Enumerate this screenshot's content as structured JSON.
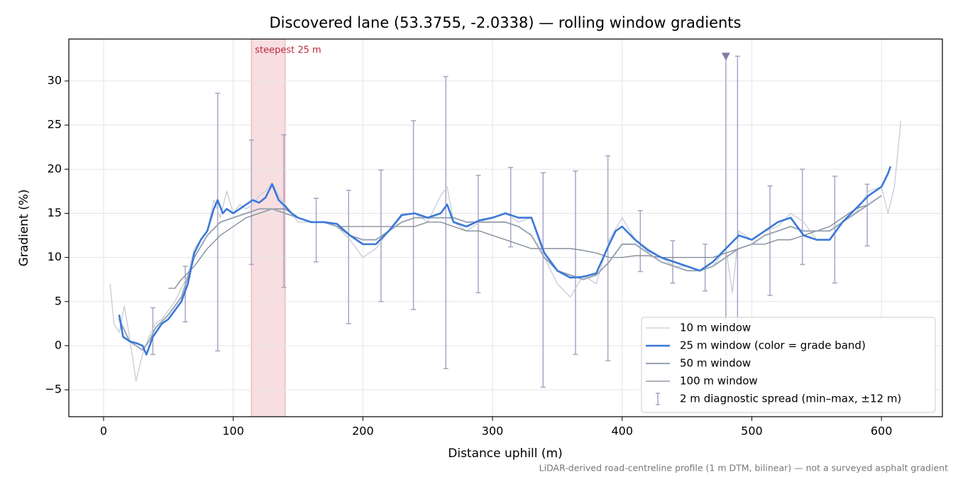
{
  "chart_data": {
    "type": "line",
    "title": "Discovered lane (53.3755, -2.0338) — rolling window gradients",
    "x_label": "Distance uphill (m)",
    "y_label": "Gradient (%)",
    "footnote": "LiDAR-derived road-centreline profile (1 m DTM, bilinear) — not a surveyed asphalt gradient",
    "xlim": [
      -26.8,
      647
    ],
    "ylim": [
      -8.05,
      34.75
    ],
    "xticks": [
      0,
      100,
      200,
      300,
      400,
      500,
      600
    ],
    "yticks": [
      {
        "value": -5,
        "label": "−5"
      },
      0,
      5,
      10,
      15,
      20,
      25,
      30
    ],
    "grid": true,
    "legend": "lower right",
    "span": {
      "x0": 114,
      "x1": 140,
      "color": "#e8a0a8",
      "label": "steepest 25 m"
    },
    "marker": {
      "x": 480,
      "y": 32.8,
      "color": "#8878a8"
    },
    "series": [
      {
        "name": "10 m window",
        "color": "#c5ccd6",
        "width": 1.3,
        "x": [
          5,
          8,
          12,
          16,
          20,
          25,
          30,
          35,
          40,
          45,
          50,
          55,
          60,
          65,
          70,
          75,
          80,
          85,
          90,
          95,
          100,
          105,
          110,
          115,
          120,
          125,
          130,
          135,
          140,
          145,
          150,
          160,
          170,
          180,
          190,
          200,
          210,
          220,
          230,
          240,
          250,
          260,
          265,
          270,
          280,
          290,
          300,
          310,
          320,
          330,
          340,
          350,
          360,
          370,
          380,
          390,
          400,
          410,
          420,
          430,
          440,
          450,
          460,
          470,
          480,
          485,
          490,
          500,
          510,
          520,
          530,
          540,
          550,
          560,
          570,
          580,
          590,
          600,
          605,
          610,
          615
        ],
        "values": [
          7,
          2.5,
          1.5,
          4.5,
          1,
          -4,
          -1,
          1,
          2.5,
          3,
          4,
          5,
          6.5,
          8,
          11,
          12,
          13,
          16.5,
          14.5,
          17.5,
          15,
          16,
          15.5,
          16,
          17,
          17.5,
          18.5,
          17,
          16,
          15,
          14,
          14,
          14,
          13.5,
          12,
          10,
          11,
          13,
          15,
          15,
          14,
          17,
          18,
          14,
          13,
          14,
          14.5,
          15,
          14,
          14.5,
          10,
          7,
          5.5,
          8,
          7,
          12,
          14.5,
          12,
          11,
          10,
          9,
          9,
          8.5,
          9,
          11,
          6,
          13,
          12,
          13,
          13.5,
          15,
          14,
          12,
          12,
          14,
          15,
          17.5,
          18,
          15,
          18,
          25.5
        ]
      },
      {
        "name": "25 m window (color = grade band)",
        "color": "#3a78d8",
        "width": 2.6,
        "x": [
          12,
          15,
          20,
          25,
          30,
          33,
          38,
          45,
          50,
          55,
          60,
          65,
          70,
          75,
          80,
          85,
          88,
          92,
          95,
          100,
          105,
          110,
          115,
          120,
          125,
          130,
          135,
          140,
          145,
          150,
          160,
          170,
          180,
          190,
          200,
          210,
          220,
          230,
          240,
          250,
          260,
          265,
          270,
          280,
          290,
          300,
          310,
          320,
          330,
          340,
          350,
          360,
          370,
          380,
          390,
          395,
          400,
          410,
          420,
          430,
          440,
          450,
          460,
          465,
          470,
          480,
          490,
          500,
          510,
          520,
          530,
          540,
          550,
          560,
          570,
          580,
          590,
          600,
          605,
          607
        ],
        "values": [
          3.5,
          1,
          0.5,
          0.3,
          0,
          -1,
          1,
          2.5,
          3,
          4,
          5,
          7,
          10.5,
          12,
          13,
          15.5,
          16.5,
          15,
          15.5,
          15,
          15.5,
          16,
          16.5,
          16.2,
          16.8,
          18.3,
          16.5,
          15.8,
          15,
          14.5,
          14,
          14,
          13.8,
          12.5,
          11.5,
          11.5,
          13,
          14.8,
          15,
          14.5,
          15,
          16,
          14,
          13.5,
          14.2,
          14.5,
          15,
          14.5,
          14.5,
          10.5,
          8.5,
          7.7,
          7.8,
          8.2,
          11.5,
          13,
          13.5,
          12,
          10.8,
          10,
          9.5,
          9,
          8.5,
          9,
          9.5,
          11,
          12.5,
          12,
          13,
          14,
          14.5,
          12.5,
          12,
          12,
          14,
          15.5,
          17,
          18,
          19.5,
          20.3
        ]
      },
      {
        "name": "50 m window",
        "color": "#9aa5b4",
        "width": 2,
        "x": [
          12,
          20,
          30,
          35,
          40,
          50,
          60,
          70,
          80,
          90,
          100,
          110,
          120,
          130,
          140,
          150,
          160,
          170,
          180,
          190,
          200,
          210,
          220,
          230,
          240,
          250,
          260,
          270,
          280,
          290,
          300,
          310,
          320,
          330,
          340,
          350,
          360,
          370,
          380,
          390,
          400,
          410,
          420,
          430,
          440,
          450,
          460,
          470,
          480,
          490,
          500,
          510,
          520,
          530,
          540,
          550,
          560,
          570,
          580,
          590,
          600
        ],
        "values": [
          3,
          0.5,
          -0.5,
          0.5,
          2,
          3.5,
          5.5,
          10,
          12.5,
          14,
          14.5,
          15,
          15.5,
          15.5,
          15,
          14.5,
          14,
          14,
          13.5,
          12.5,
          12,
          12,
          13,
          14,
          14.5,
          14.5,
          14.5,
          14.5,
          14,
          14,
          14,
          14,
          13.5,
          12.5,
          10,
          8.5,
          8,
          7.5,
          8,
          9.5,
          11.5,
          11.5,
          10.5,
          9.5,
          9,
          8.5,
          8.5,
          9,
          10,
          11,
          11.5,
          12.5,
          13,
          13.5,
          13,
          13,
          13,
          14,
          15,
          16,
          17
        ]
      },
      {
        "name": "100 m window",
        "color": "#7d8796",
        "width": 1.3,
        "x": [
          50,
          55,
          60,
          70,
          80,
          90,
          100,
          110,
          120,
          130,
          140,
          150,
          160,
          170,
          180,
          190,
          200,
          210,
          220,
          230,
          240,
          250,
          260,
          270,
          280,
          290,
          300,
          310,
          320,
          330,
          340,
          350,
          360,
          370,
          380,
          390,
          400,
          410,
          420,
          430,
          440,
          450,
          460,
          470,
          480,
          490,
          500,
          510,
          520,
          530,
          540,
          550,
          560,
          570,
          580,
          590
        ],
        "values": [
          6.5,
          6.5,
          7.5,
          9,
          11,
          12.5,
          13.5,
          14.5,
          15,
          15.5,
          15.5,
          14.5,
          14,
          14,
          13.5,
          13.5,
          13.5,
          13.5,
          13.5,
          13.5,
          13.5,
          14,
          14,
          13.5,
          13,
          13,
          12.5,
          12,
          11.5,
          11,
          11,
          11,
          11,
          10.8,
          10.5,
          10,
          10,
          10.2,
          10.2,
          10,
          10,
          10,
          10,
          10,
          10.5,
          11,
          11.5,
          11.5,
          12,
          12,
          12.5,
          13,
          13.5,
          14.5,
          15.5,
          16
        ]
      }
    ],
    "errorbars": {
      "name": "2 m diagnostic spread (min–max, ±12 m)",
      "color": "#a8a4c4",
      "x": [
        38,
        63,
        88,
        114,
        139,
        164,
        189,
        214,
        239,
        264,
        289,
        314,
        339,
        364,
        389,
        414,
        439,
        464,
        480,
        489,
        514,
        539,
        564,
        589
      ],
      "low": [
        -1,
        2.7,
        -0.6,
        9.2,
        6.6,
        9.5,
        2.5,
        5,
        4.1,
        -2.6,
        6,
        11.2,
        -4.7,
        -1,
        -1.7,
        8.4,
        7.1,
        6.2,
        -1,
        -0.5,
        5.7,
        9.2,
        7.1,
        11.3
      ],
      "high": [
        4.3,
        9,
        28.6,
        23.3,
        23.9,
        16.7,
        17.6,
        19.9,
        25.5,
        30.5,
        19.3,
        20.2,
        19.6,
        19.8,
        21.5,
        15.3,
        11.9,
        11.5,
        33,
        32.8,
        18.1,
        20,
        19.2,
        18.3
      ]
    }
  }
}
